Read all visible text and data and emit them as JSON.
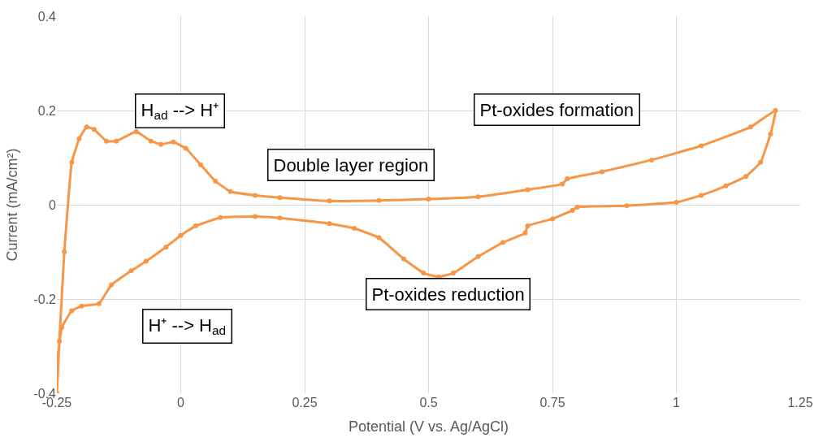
{
  "chart_data": {
    "type": "line",
    "xlabel": "Potential (V vs. Ag/AgCl)",
    "ylabel": "Current (mA/cm²)",
    "xlim": [
      -0.25,
      1.25
    ],
    "xticks": [
      -0.25,
      0,
      0.25,
      0.5,
      0.75,
      1,
      1.25
    ],
    "ylim": [
      -0.4,
      0.4
    ],
    "yticks": [
      -0.4,
      -0.2,
      0,
      0.2,
      0.4
    ],
    "grid": true,
    "marker": "circle",
    "line_style": "solid",
    "series": [
      {
        "color": "#f79646",
        "x": [
          -0.25,
          -0.245,
          -0.235,
          -0.22,
          -0.205,
          -0.19,
          -0.175,
          -0.15,
          -0.13,
          -0.09,
          -0.06,
          -0.04,
          -0.015,
          0.01,
          0.04,
          0.07,
          0.1,
          0.15,
          0.2,
          0.3,
          0.4,
          0.5,
          0.6,
          0.7,
          0.77,
          0.78,
          0.85,
          0.95,
          1.05,
          1.15,
          1.2,
          1.19,
          1.17,
          1.14,
          1.1,
          1.05,
          1.0,
          0.9,
          0.8,
          0.79,
          0.75,
          0.7,
          0.695,
          0.65,
          0.6,
          0.55,
          0.52,
          0.49,
          0.45,
          0.4,
          0.35,
          0.3,
          0.2,
          0.15,
          0.08,
          0.03,
          0,
          -0.03,
          -0.07,
          -0.1,
          -0.14,
          -0.165,
          -0.2,
          -0.22,
          -0.24,
          -0.25
        ],
        "values": [
          -0.4,
          -0.29,
          -0.1,
          0.09,
          0.14,
          0.165,
          0.16,
          0.135,
          0.135,
          0.155,
          0.135,
          0.128,
          0.133,
          0.12,
          0.085,
          0.05,
          0.028,
          0.02,
          0.015,
          0.008,
          0.009,
          0.012,
          0.017,
          0.032,
          0.044,
          0.055,
          0.07,
          0.095,
          0.125,
          0.165,
          0.2,
          0.15,
          0.09,
          0.06,
          0.04,
          0.02,
          0.005,
          -0.002,
          -0.005,
          -0.012,
          -0.03,
          -0.045,
          -0.06,
          -0.08,
          -0.11,
          -0.145,
          -0.153,
          -0.145,
          -0.115,
          -0.07,
          -0.05,
          -0.04,
          -0.028,
          -0.025,
          -0.027,
          -0.045,
          -0.065,
          -0.09,
          -0.12,
          -0.14,
          -0.17,
          -0.21,
          -0.215,
          -0.225,
          -0.26,
          -0.34
        ]
      }
    ],
    "annotations": [
      "H$_{ad}$ --> H⁺",
      "Pt-oxides formation",
      "Double layer region",
      "Pt-oxides reduction",
      "H⁺ --> H$_{ad}$"
    ]
  }
}
